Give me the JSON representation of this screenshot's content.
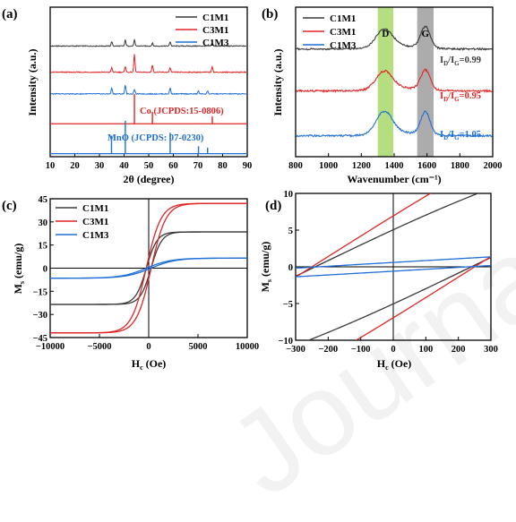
{
  "watermark": "Journal Pre-proofs",
  "colors": {
    "C1M1": "#3a3a3a",
    "C3M1": "#e02525",
    "C1M3": "#1f6fd6",
    "D_band": "#a8d86a",
    "G_band": "#9e9e9e",
    "Co_ref": "#e02525",
    "MnO_ref": "#1f6fd6"
  },
  "chart_data": [
    {
      "panel": "(a)",
      "type": "line",
      "xlabel": "2θ (degree)",
      "ylabel": "Intensity (a.u.)",
      "xlim": [
        10,
        90
      ],
      "xticks": [
        10,
        20,
        30,
        40,
        50,
        60,
        70,
        80,
        90
      ],
      "legend": {
        "position": "top-right",
        "entries": [
          "C1M1",
          "C3M1",
          "C1M3"
        ]
      },
      "series": [
        {
          "name": "C1M1",
          "baseline": 0.74,
          "peaks": [
            [
              35,
              0.03
            ],
            [
              40.5,
              0.04
            ],
            [
              44.2,
              0.04
            ],
            [
              51.5,
              0.02
            ],
            [
              58.7,
              0.03
            ],
            [
              75.8,
              0.02
            ]
          ]
        },
        {
          "name": "C3M1",
          "baseline": 0.565,
          "peaks": [
            [
              35,
              0.03
            ],
            [
              40.5,
              0.04
            ],
            [
              44.2,
              0.12
            ],
            [
              51.5,
              0.05
            ],
            [
              58.7,
              0.03
            ],
            [
              75.8,
              0.04
            ]
          ]
        },
        {
          "name": "C1M3",
          "baseline": 0.42,
          "peaks": [
            [
              35,
              0.04
            ],
            [
              40.5,
              0.06
            ],
            [
              44.2,
              0.03
            ],
            [
              58.7,
              0.04
            ],
            [
              70.2,
              0.02
            ],
            [
              73.9,
              0.02
            ]
          ]
        }
      ],
      "references": [
        {
          "name": "Co (JCPDS:15-0806)",
          "baseline": 0.22,
          "lines": [
            [
              44.2,
              0.2
            ],
            [
              51.5,
              0.08
            ],
            [
              75.8,
              0.05
            ]
          ]
        },
        {
          "name": "MnO (JCPDS: 07-0230)",
          "baseline": 0.02,
          "lines": [
            [
              34.9,
              0.12
            ],
            [
              40.5,
              0.22
            ],
            [
              58.7,
              0.14
            ],
            [
              70.2,
              0.05
            ],
            [
              73.9,
              0.04
            ]
          ]
        }
      ]
    },
    {
      "panel": "(b)",
      "type": "line",
      "xlabel": "Wavenumber (cm⁻¹)",
      "ylabel": "Intensity (a.u.)",
      "xlim": [
        800,
        2000
      ],
      "xticks": [
        800,
        1000,
        1200,
        1400,
        1600,
        1800,
        2000
      ],
      "bands": [
        {
          "label": "D",
          "range": [
            1300,
            1395
          ]
        },
        {
          "label": "G",
          "range": [
            1540,
            1640
          ]
        }
      ],
      "legend": {
        "position": "top-left",
        "entries": [
          "C1M1",
          "C3M1",
          "C1M3"
        ]
      },
      "series": [
        {
          "name": "C1M1",
          "baseline": 0.72,
          "D": 0.12,
          "G": 0.14,
          "ratio": "0.99"
        },
        {
          "name": "C3M1",
          "baseline": 0.44,
          "D": 0.12,
          "G": 0.13,
          "ratio": "0.95"
        },
        {
          "name": "C1M3",
          "baseline": 0.14,
          "D": 0.15,
          "G": 0.15,
          "ratio": "1.05"
        }
      ]
    },
    {
      "panel": "(c)",
      "type": "line",
      "xlabel": "Hc (Oe)",
      "ylabel": "Ms (emu/g)",
      "xlim": [
        -10000,
        10000
      ],
      "ylim": [
        -45,
        45
      ],
      "xticks": [
        -10000,
        -5000,
        0,
        5000,
        10000
      ],
      "yticks": [
        -45,
        -30,
        -15,
        0,
        15,
        30,
        45
      ],
      "legend": {
        "position": "top-left",
        "entries": [
          "C1M1",
          "C3M1",
          "C1M3"
        ]
      },
      "series": [
        {
          "name": "C1M1",
          "Ms": 23.5,
          "Hc": 240,
          "width": 1100
        },
        {
          "name": "C3M1",
          "Ms": 42,
          "Hc": 250,
          "width": 1500
        },
        {
          "name": "C1M3",
          "Ms": 6.5,
          "Hc": 230,
          "width": 2500
        }
      ]
    },
    {
      "panel": "(d)",
      "type": "line",
      "xlabel": "Hc (Oe)",
      "ylabel": "Ms (emu/g)",
      "xlim": [
        -300,
        300
      ],
      "ylim": [
        -10,
        10
      ],
      "xticks": [
        -300,
        -200,
        -100,
        0,
        100,
        200,
        300
      ],
      "yticks": [
        -10,
        -5,
        0,
        5,
        10
      ],
      "series_ref": "same loops as (c), zoomed"
    }
  ],
  "texts": {
    "a": {
      "letter": "(a)",
      "ylabel": "Intensity (a.u.)",
      "xlabel": "2θ (degree)",
      "legend": [
        "C1M1",
        "C3M1",
        "C1M3"
      ],
      "co": "Co (JCPDS:15-0806)",
      "mno": "MnO (JCPDS: 07-0230)"
    },
    "b": {
      "letter": "(b)",
      "ylabel": "Intensity (a.u.)",
      "xlabel": "Wavenumber (cm⁻¹)",
      "legend": [
        "C1M1",
        "C3M1",
        "C1M3"
      ],
      "D": "D",
      "G": "G",
      "ratio_prefix_D": "I",
      "ratio_sub_D": "D",
      "ratio_slash": "/I",
      "ratio_sub_G": "G",
      "ratios": [
        "=0.99",
        "=0.95",
        "=1.05"
      ]
    },
    "c": {
      "letter": "(c)",
      "ylabel_main": "M",
      "ylabel_sub": "s",
      "ylabel_unit": " (emu/g)",
      "xlabel_main": "H",
      "xlabel_sub": "c",
      "xlabel_unit": " (Oe)",
      "legend": [
        "C1M1",
        "C3M1",
        "C1M3"
      ]
    },
    "d": {
      "letter": "(d)",
      "ylabel_main": "M",
      "ylabel_sub": "s",
      "ylabel_unit": " (emu/g)",
      "xlabel_main": "H",
      "xlabel_sub": "c",
      "xlabel_unit": " (Oe)"
    }
  }
}
